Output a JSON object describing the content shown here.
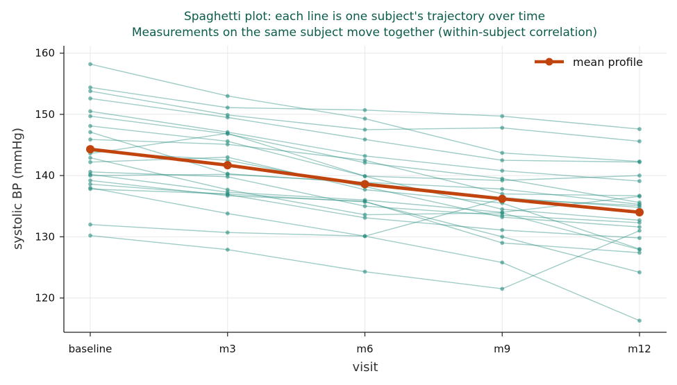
{
  "chart_data": {
    "type": "line",
    "title": "Spaghetti plot: each line is one subject's trajectory over time",
    "subtitle": "Measurements on the same subject move together (within-subject correlation)",
    "xlabel": "visit",
    "ylabel": "systolic BP (mmHg)",
    "categories": [
      "baseline",
      "m3",
      "m6",
      "m9",
      "m12"
    ],
    "ylim": [
      114.4,
      161.2
    ],
    "yticks": [
      120,
      130,
      140,
      150,
      160
    ],
    "grid": true,
    "legend_position": "top-right",
    "colors": {
      "subject": "#2a8f80",
      "mean": "#c1440e",
      "title": "#0b5c4a"
    },
    "subjects": [
      [
        158.2,
        153.0,
        149.3,
        143.7,
        142.3
      ],
      [
        154.4,
        151.1,
        150.7,
        149.7,
        147.6
      ],
      [
        153.8,
        149.9,
        147.5,
        147.8,
        145.6
      ],
      [
        152.6,
        149.5,
        145.9,
        142.5,
        142.2
      ],
      [
        150.5,
        147.1,
        143.2,
        140.8,
        139.1
      ],
      [
        149.7,
        146.8,
        142.1,
        139.5,
        135.6
      ],
      [
        148.1,
        145.6,
        139.9,
        139.2,
        140.0
      ],
      [
        147.1,
        140.3,
        138.8,
        136.4,
        134.8
      ],
      [
        145.9,
        145.1,
        142.5,
        137.0,
        136.7
      ],
      [
        144.0,
        142.5,
        138.2,
        133.2,
        131.6
      ],
      [
        143.6,
        146.9,
        139.9,
        134.5,
        132.7
      ],
      [
        142.9,
        137.7,
        133.6,
        133.9,
        127.9
      ],
      [
        142.2,
        143.0,
        137.7,
        135.5,
        128.0
      ],
      [
        140.6,
        139.8,
        135.0,
        133.5,
        132.3
      ],
      [
        140.2,
        137.3,
        136.0,
        134.0,
        136.6
      ],
      [
        140.0,
        140.2,
        138.9,
        137.8,
        135.3
      ],
      [
        139.2,
        136.7,
        135.8,
        129.0,
        127.4
      ],
      [
        138.6,
        136.9,
        133.1,
        131.1,
        129.8
      ],
      [
        137.8,
        137.0,
        135.7,
        130.0,
        124.2
      ],
      [
        132.0,
        130.7,
        130.1,
        125.8,
        116.3
      ],
      [
        130.2,
        127.9,
        124.3,
        121.5,
        131.0
      ],
      [
        138.0,
        133.8,
        130.1,
        136.2,
        135.1
      ]
    ],
    "series": [
      {
        "name": "mean profile",
        "values": [
          144.3,
          141.7,
          138.6,
          136.2,
          134.0
        ]
      }
    ]
  }
}
